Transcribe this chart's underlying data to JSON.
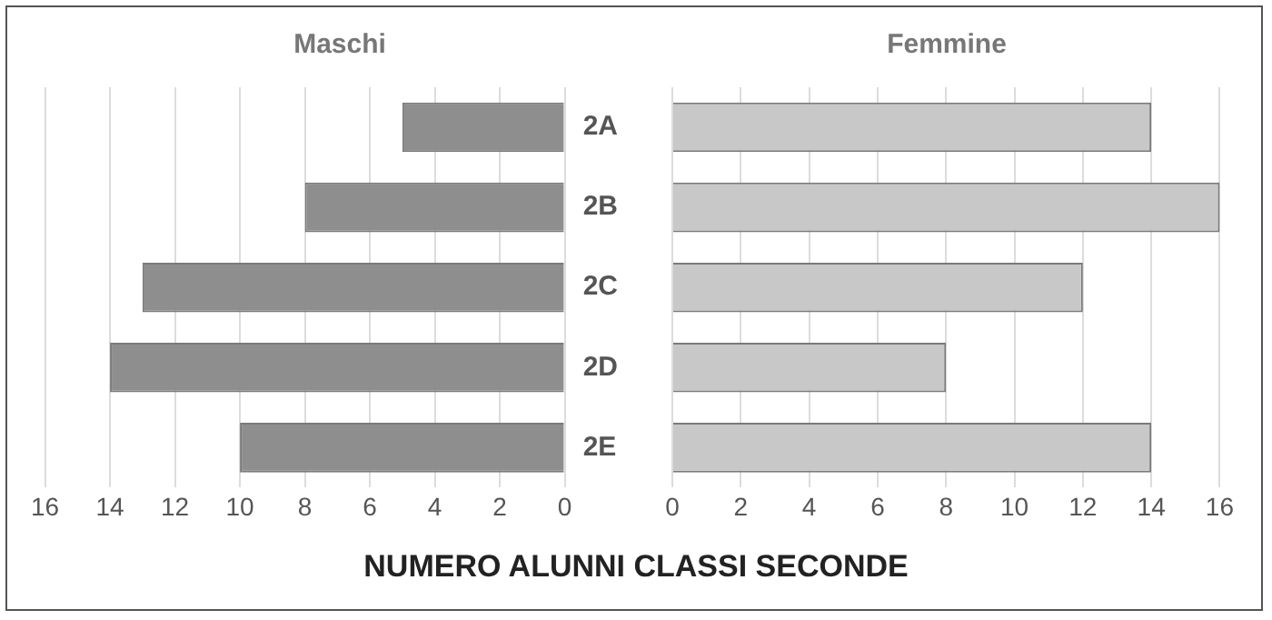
{
  "chart_data": [
    {
      "type": "bar",
      "title": "Maschi",
      "orientation": "horizontal",
      "categories": [
        "2A",
        "2B",
        "2C",
        "2D",
        "2E"
      ],
      "series": [
        {
          "color": "#8e8e8e",
          "values": [
            5,
            8,
            13,
            14,
            10
          ]
        }
      ],
      "xlim": [
        16,
        0
      ],
      "xticks": [
        16,
        14,
        12,
        10,
        8,
        6,
        4,
        2,
        0
      ],
      "grid": "x",
      "annotations": [
        "NUMERO ALUNNI CLASSI SECONDE"
      ]
    },
    {
      "type": "bar",
      "title": "Femmine",
      "orientation": "horizontal",
      "categories": [
        null,
        null,
        null,
        null,
        null
      ],
      "series": [
        {
          "color": "#c8c8c8",
          "values": [
            14,
            16,
            12,
            8,
            14
          ]
        }
      ],
      "xlim": [
        0,
        16
      ],
      "xticks": [
        0,
        2,
        4,
        6,
        8,
        10,
        12,
        14,
        16
      ],
      "grid": "x",
      "tick_labels": "x"
    }
  ]
}
